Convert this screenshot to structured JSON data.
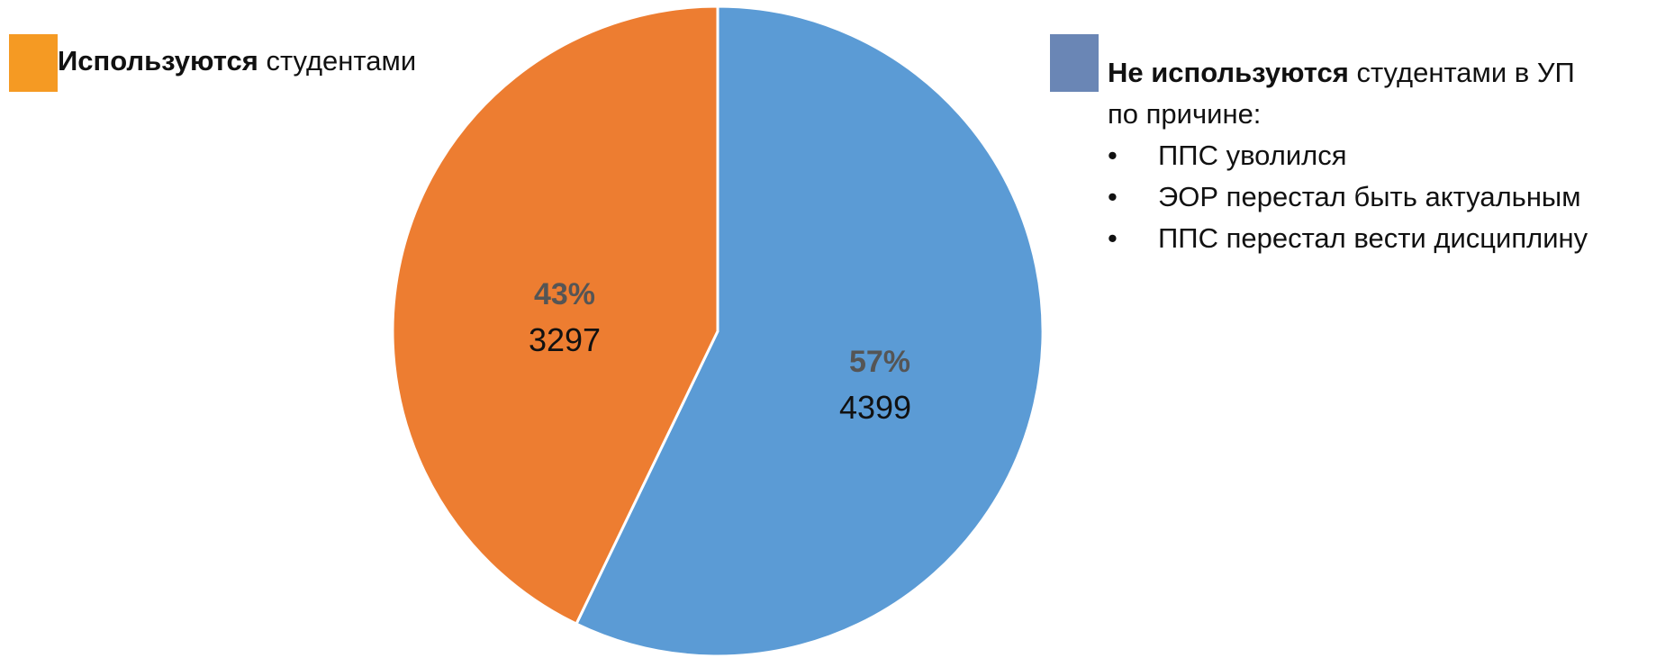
{
  "chart_data": {
    "type": "pie",
    "slices": [
      {
        "name": "Используются студентами",
        "value": 3297,
        "percent": "43%",
        "color": "#ED7D31"
      },
      {
        "name": "Не используются студентами в УП",
        "value": 4399,
        "percent": "57%",
        "color": "#5B9BD5"
      }
    ]
  },
  "legend": {
    "left": {
      "bold": "Используются",
      "rest": " студентами",
      "swatch_color": "#F59A23"
    },
    "right": {
      "bold": "Не используются",
      "rest": " студентами в УП",
      "line2": "по причине:",
      "swatch_color": "#6A86B5",
      "bullet": "•",
      "reasons": [
        "ППС уволился",
        "ЭОР перестал быть актуальным",
        "ППС перестал вести дисциплину"
      ]
    }
  }
}
